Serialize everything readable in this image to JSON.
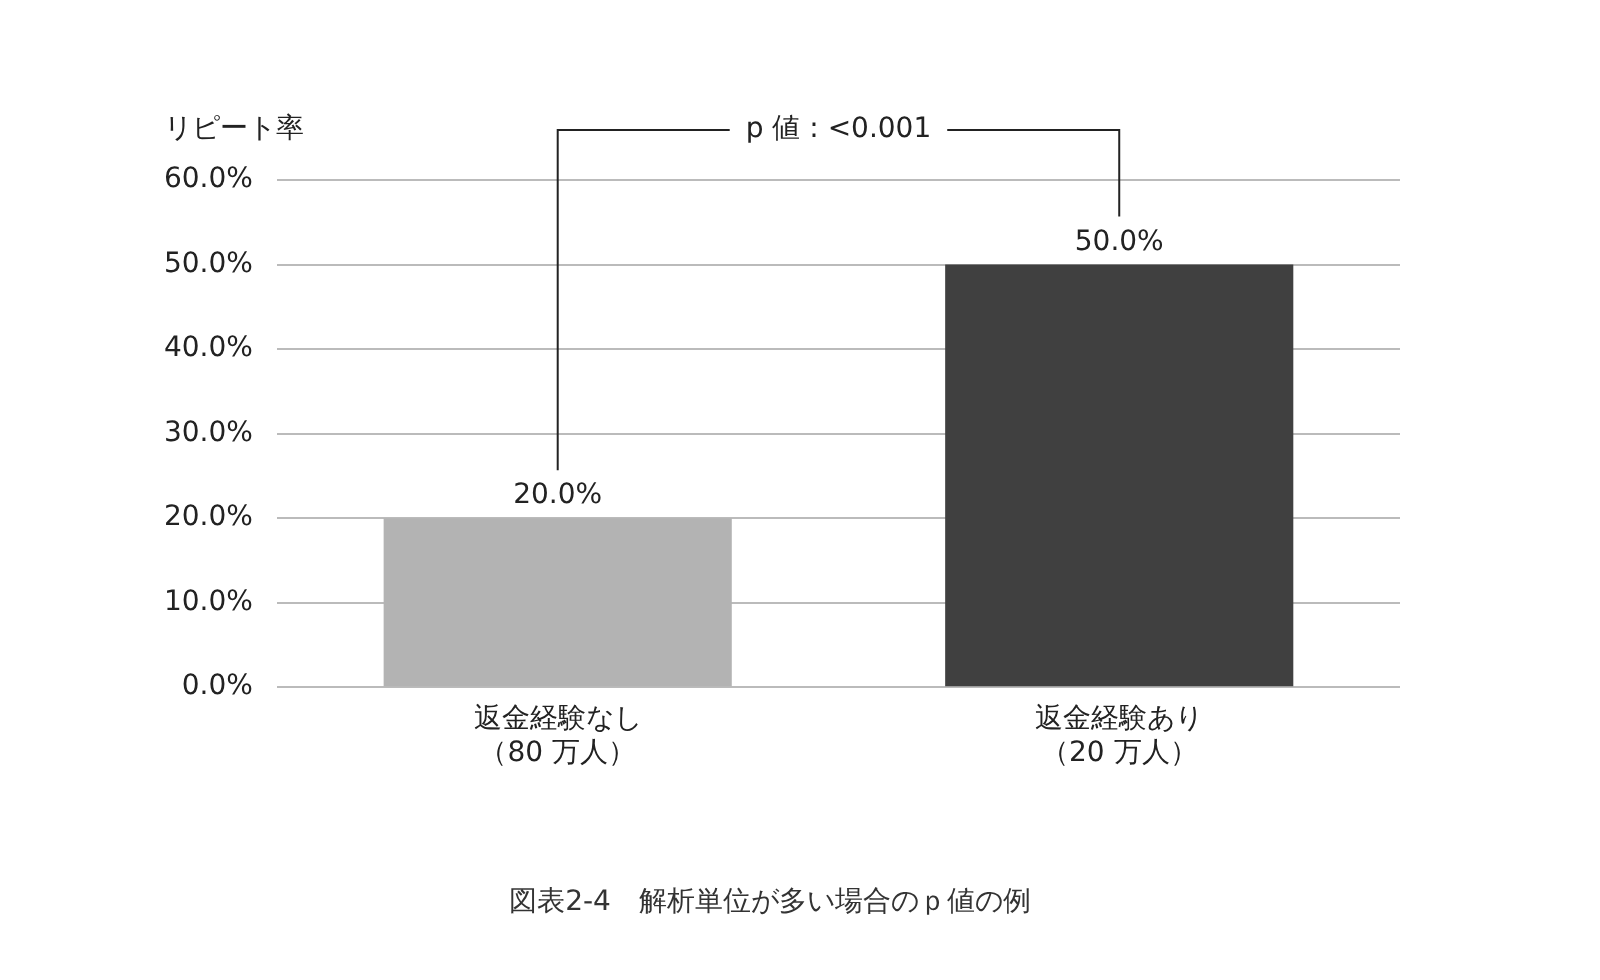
{
  "chart_data": {
    "type": "bar",
    "title": "図表2-4　解析単位が多い場合のｐ値の例",
    "ylabel": "リピート率",
    "categories": [
      "返金経験なし（80 万人）",
      "返金経験あり（20 万人）"
    ],
    "values": [
      20,
      50
    ],
    "colors": [
      "#b3b3b3",
      "#404040"
    ],
    "ylim": [
      0,
      60
    ],
    "yticks": [
      {
        "value": 0,
        "label": "0.0%"
      },
      {
        "value": 10,
        "label": "10.0%"
      },
      {
        "value": 20,
        "label": "20.0%"
      },
      {
        "value": 30,
        "label": "30.0%"
      },
      {
        "value": 40,
        "label": "40.0%"
      },
      {
        "value": 50,
        "label": "50.0%"
      },
      {
        "value": 60,
        "label": "60.0%"
      }
    ],
    "value_labels": [
      "20.0%",
      "50.0%"
    ],
    "annotations": [
      "p 値 : <0.001"
    ],
    "grid": "y",
    "legend": false
  }
}
